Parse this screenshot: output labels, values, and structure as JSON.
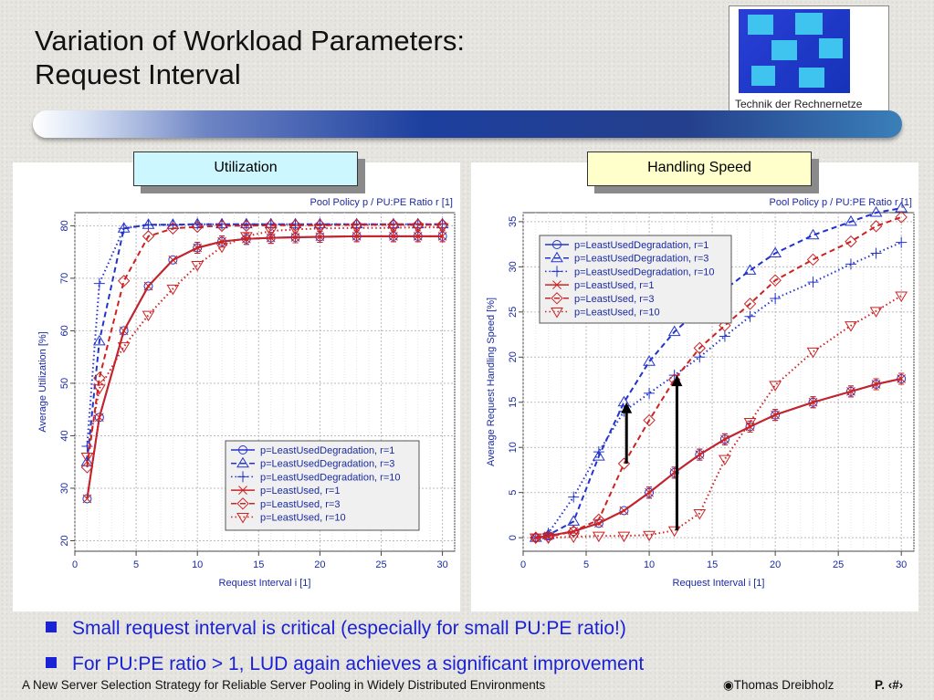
{
  "slide": {
    "title_line1": "Variation of Workload Parameters:",
    "title_line2": "Request Interval",
    "logo_caption": "Technik der Rechnernetze",
    "label_left": "Utilization",
    "label_right": "Handling Speed",
    "bullets": [
      "Small request interval is critical (especially for small PU:PE ratio!)",
      "For PU:PE ratio > 1, LUD again achieves a significant improvement"
    ],
    "footer_left": "A New Server Selection Strategy for Reliable Server Pooling in Widely Distributed Environments",
    "footer_author": "Thomas Dreibholz",
    "footer_page": "P. ‹#›",
    "colors": {
      "lud": "#2233cc",
      "lu": "#cc2222",
      "label_left_bg": "#ccf7ff",
      "label_right_bg": "#ffffcc"
    }
  },
  "chart_data": [
    {
      "type": "line",
      "topnote": "Pool Policy p / PU:PE Ratio r [1]",
      "xlabel": "Request Interval i [1]",
      "ylabel": "Average Utilization [%]",
      "xlim": [
        0,
        31
      ],
      "ylim": [
        18,
        82.5
      ],
      "xticks": [
        0,
        5,
        10,
        15,
        20,
        25,
        30
      ],
      "yticks": [
        20,
        30,
        40,
        50,
        60,
        70,
        80
      ],
      "grid": true,
      "legend_position": "bottom-right",
      "x": [
        1,
        2,
        4,
        6,
        8,
        10,
        12,
        14,
        16,
        18,
        20,
        23,
        26,
        28,
        30
      ],
      "series": [
        {
          "name": "p=LeastUsedDegradation, r=1",
          "color": "#2233cc",
          "dash": "",
          "marker": "circle",
          "values": [
            28,
            43.5,
            60,
            68.5,
            73.5,
            75.8,
            77,
            77.5,
            77.7,
            77.8,
            77.9,
            78,
            78,
            78,
            78
          ]
        },
        {
          "name": "p=LeastUsedDegradation, r=3",
          "color": "#2233cc",
          "dash": "6,4",
          "marker": "triangle",
          "values": [
            35,
            58,
            79.5,
            80.2,
            80.2,
            80.3,
            80.3,
            80.3,
            80.3,
            80.3,
            80.3,
            80.3,
            80.3,
            80.3,
            80.3
          ]
        },
        {
          "name": "p=LeastUsedDegradation, r=10",
          "color": "#2233cc",
          "dash": "1.5,3",
          "marker": "plus",
          "values": [
            38,
            69,
            79.5,
            80.2,
            80.2,
            80.3,
            80.3,
            80.3,
            80.3,
            80.3,
            80.3,
            80.3,
            80.3,
            80.3,
            80.3
          ]
        },
        {
          "name": "p=LeastUsed, r=1",
          "color": "#cc2222",
          "dash": "",
          "marker": "x",
          "values": [
            28,
            43.5,
            60,
            68.5,
            73.5,
            75.8,
            77,
            77.5,
            77.7,
            77.8,
            77.9,
            78,
            78,
            78,
            78
          ]
        },
        {
          "name": "p=LeastUsed, r=3",
          "color": "#cc2222",
          "dash": "6,4",
          "marker": "diamond",
          "values": [
            34,
            51,
            69.5,
            78,
            79.5,
            79.8,
            80,
            80,
            80.1,
            80.1,
            80.1,
            80.2,
            80.2,
            80.2,
            80.2
          ]
        },
        {
          "name": "p=LeastUsed, r=10",
          "color": "#cc2222",
          "dash": "1.5,3",
          "marker": "triangle-down",
          "values": [
            36,
            49,
            57,
            63,
            68,
            72.5,
            76,
            78,
            79,
            79.3,
            79.5,
            79.6,
            79.6,
            79.7,
            79.7
          ]
        }
      ]
    },
    {
      "type": "line",
      "topnote": "Pool Policy p / PU:PE Ratio r [1]",
      "xlabel": "Request Interval i [1]",
      "ylabel": "Average Request Handling Speed [%]",
      "xlim": [
        0,
        31
      ],
      "ylim": [
        -1.5,
        36
      ],
      "xticks": [
        0,
        5,
        10,
        15,
        20,
        25,
        30
      ],
      "yticks": [
        0,
        5,
        10,
        15,
        20,
        25,
        30,
        35
      ],
      "grid": true,
      "legend_position": "top-left",
      "x": [
        1,
        2,
        4,
        6,
        8,
        10,
        12,
        14,
        16,
        18,
        20,
        23,
        26,
        28,
        30
      ],
      "series": [
        {
          "name": "p=LeastUsedDegradation, r=1",
          "color": "#2233cc",
          "dash": "",
          "marker": "circle",
          "values": [
            0,
            0.2,
            0.7,
            1.6,
            3,
            5,
            7.2,
            9.2,
            10.9,
            12.3,
            13.6,
            15,
            16.2,
            17,
            17.6
          ]
        },
        {
          "name": "p=LeastUsedDegradation, r=3",
          "color": "#2233cc",
          "dash": "6,4",
          "marker": "triangle",
          "values": [
            0,
            0.3,
            1.8,
            9,
            15,
            19.5,
            22.8,
            25.3,
            27.5,
            29.6,
            31.5,
            33.5,
            35,
            36,
            36.5
          ]
        },
        {
          "name": "p=LeastUsedDegradation, r=10",
          "color": "#2233cc",
          "dash": "1.5,3",
          "marker": "plus",
          "values": [
            0,
            0.5,
            4.5,
            9.5,
            14,
            16,
            18,
            20,
            22.3,
            24.5,
            26.5,
            28.3,
            30.3,
            31.5,
            32.7
          ]
        },
        {
          "name": "p=LeastUsed, r=1",
          "color": "#cc2222",
          "dash": "",
          "marker": "x",
          "values": [
            0,
            0.2,
            0.7,
            1.6,
            3,
            5,
            7.2,
            9.2,
            10.9,
            12.3,
            13.6,
            15,
            16.2,
            17,
            17.6
          ]
        },
        {
          "name": "p=LeastUsed, r=3",
          "color": "#cc2222",
          "dash": "6,4",
          "marker": "diamond",
          "values": [
            0,
            0.1,
            0.7,
            2,
            8.2,
            13,
            17.5,
            21,
            23.5,
            25.9,
            28.5,
            30.8,
            32.8,
            34.5,
            35.5
          ]
        },
        {
          "name": "p=LeastUsed, r=10",
          "color": "#cc2222",
          "dash": "1.5,3",
          "marker": "triangle-down",
          "values": [
            0,
            0,
            0.1,
            0.2,
            0.2,
            0.3,
            0.8,
            2.7,
            8.7,
            12.8,
            16.9,
            20.6,
            23.5,
            25.1,
            26.8
          ]
        }
      ],
      "arrows": [
        {
          "x": 8.2,
          "from": 8.2,
          "to": 15
        },
        {
          "x": 12.2,
          "from": 0.8,
          "to": 18
        }
      ]
    }
  ]
}
